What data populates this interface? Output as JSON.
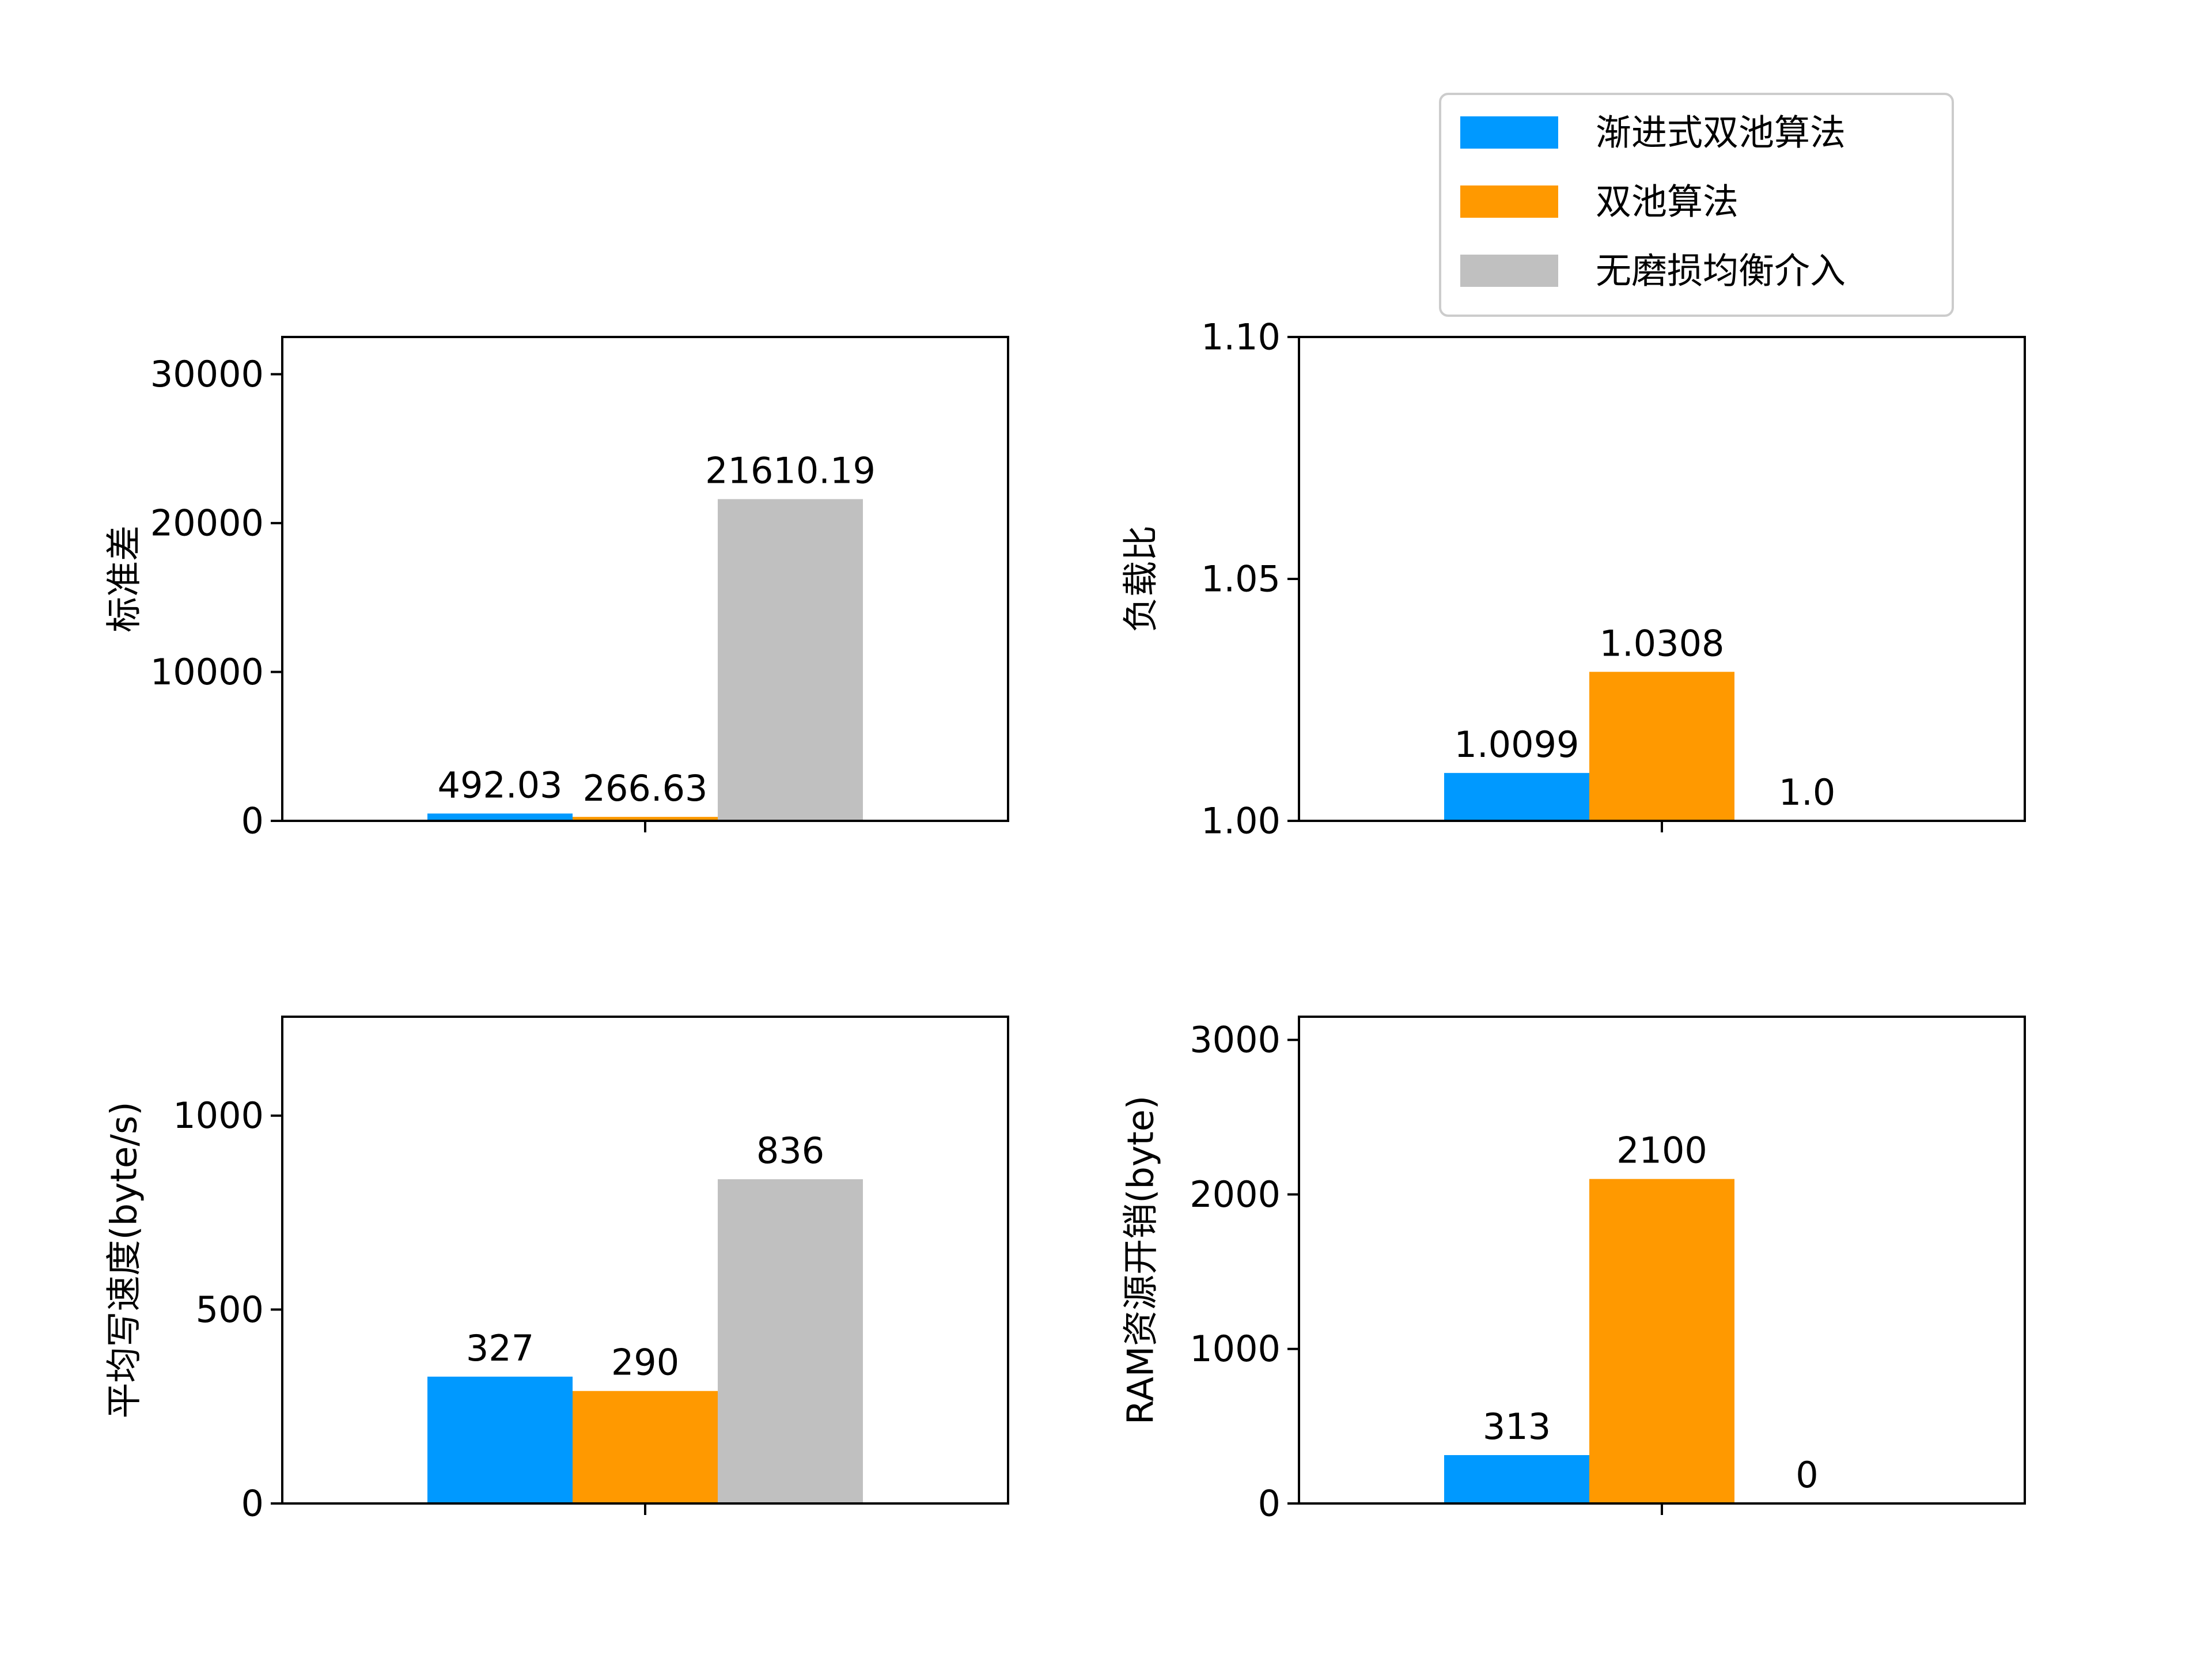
{
  "legend": {
    "items": [
      {
        "label": "渐进式双池算法",
        "color": "#0099FF"
      },
      {
        "label": "双池算法",
        "color": "#FF9900"
      },
      {
        "label": "无磨损均衡介入",
        "color": "#C0C0C0"
      }
    ]
  },
  "chart_data": [
    {
      "type": "bar",
      "ylabel": "标准差",
      "ylim": [
        0,
        32500
      ],
      "yticks": [
        0,
        10000,
        20000,
        30000
      ],
      "values": [
        492.03,
        266.63,
        21610.19
      ],
      "value_labels": [
        "492.03",
        "266.63",
        "21610.19"
      ],
      "categories": [
        "渐进式双池算法",
        "双池算法",
        "无磨损均衡介入"
      ],
      "grid": false
    },
    {
      "type": "bar",
      "ylabel": "负载比",
      "ylim": [
        1.0,
        1.1
      ],
      "yticks": [
        1.0,
        1.05,
        1.1
      ],
      "ytick_labels": [
        "1.00",
        "1.05",
        "1.10"
      ],
      "values": [
        1.0099,
        1.0308,
        1.0
      ],
      "value_labels": [
        "1.0099",
        "1.0308",
        "1.0"
      ],
      "categories": [
        "渐进式双池算法",
        "双池算法",
        "无磨损均衡介入"
      ],
      "grid": false
    },
    {
      "type": "bar",
      "ylabel": "平均写速度(byte/s)",
      "ylim": [
        0,
        1255
      ],
      "yticks": [
        0,
        500,
        1000
      ],
      "values": [
        327,
        290,
        836
      ],
      "value_labels": [
        "327",
        "290",
        "836"
      ],
      "categories": [
        "渐进式双池算法",
        "双池算法",
        "无磨损均衡介入"
      ],
      "grid": false
    },
    {
      "type": "bar",
      "ylabel": "RAM资源开销(byte)",
      "ylim": [
        0,
        3150
      ],
      "yticks": [
        0,
        1000,
        2000,
        3000
      ],
      "values": [
        313,
        2100,
        0
      ],
      "value_labels": [
        "313",
        "2100",
        "0"
      ],
      "categories": [
        "渐进式双池算法",
        "双池算法",
        "无磨损均衡介入"
      ],
      "grid": false
    }
  ]
}
